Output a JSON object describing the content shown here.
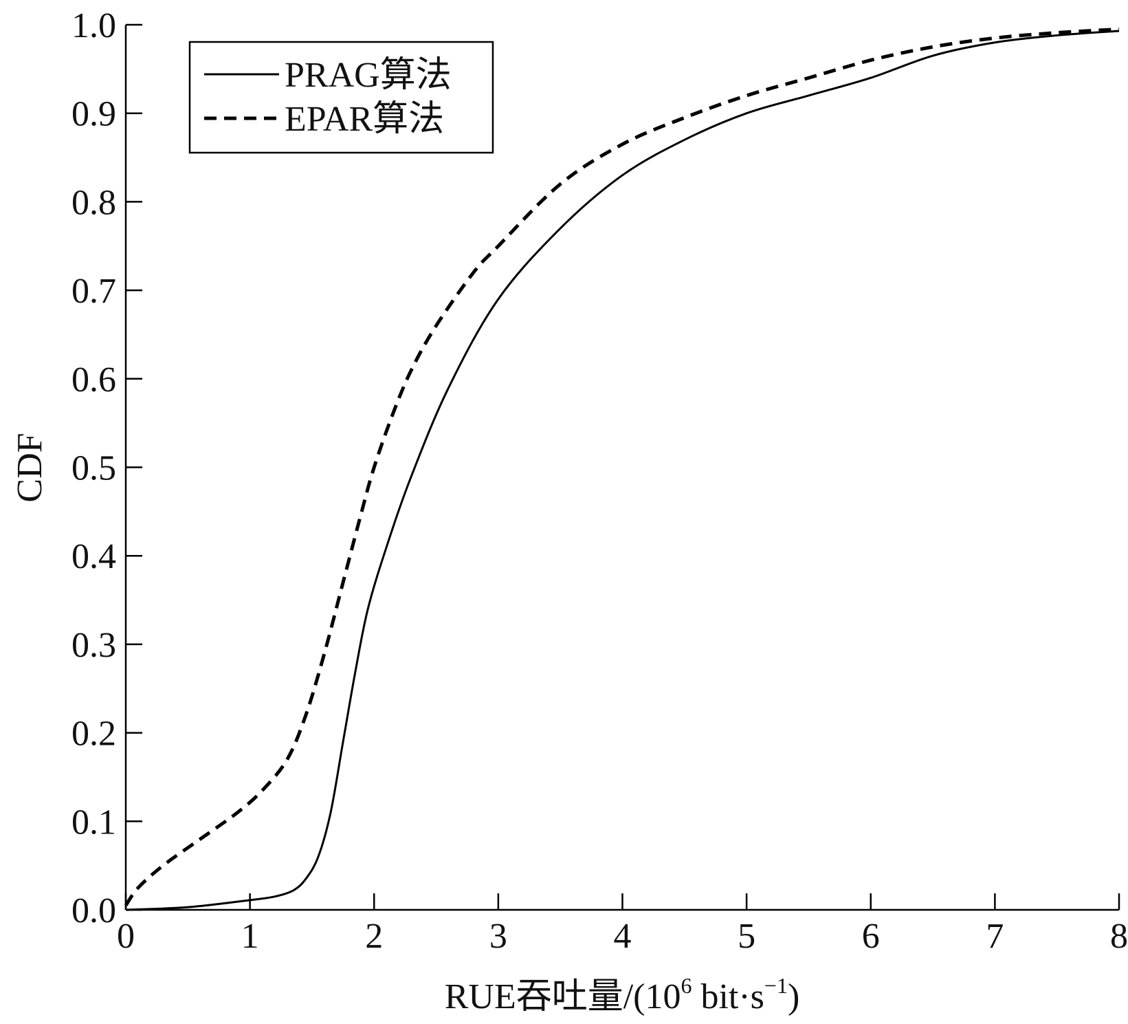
{
  "chart_data": {
    "type": "line",
    "title": "",
    "xlabel": "RUE吞吐量/(10",
    "xlabel_sup": "6",
    "xlabel_tail": " bit·s",
    "xlabel_sup2": "−1",
    "xlabel_end": ")",
    "ylabel": "CDF",
    "xlim": [
      0,
      8
    ],
    "ylim": [
      0,
      1
    ],
    "x_ticks": [
      "0",
      "1",
      "2",
      "3",
      "4",
      "5",
      "6",
      "7",
      "8"
    ],
    "y_ticks": [
      "0.0",
      "0.1",
      "0.2",
      "0.3",
      "0.4",
      "0.5",
      "0.6",
      "0.7",
      "0.8",
      "0.9",
      "1.0"
    ],
    "grid": false,
    "legend_position": "top-left",
    "series": [
      {
        "name": "PRAG算法",
        "style": "solid",
        "color": "#000000",
        "x": [
          0,
          0.5,
          1.0,
          1.2,
          1.35,
          1.45,
          1.55,
          1.65,
          1.75,
          1.85,
          1.95,
          2.1,
          2.3,
          2.6,
          3.0,
          3.5,
          4.0,
          4.5,
          5.0,
          5.5,
          6.0,
          6.5,
          7.0,
          7.5,
          8.0
        ],
        "y": [
          0,
          0.003,
          0.011,
          0.015,
          0.022,
          0.035,
          0.06,
          0.11,
          0.19,
          0.27,
          0.34,
          0.41,
          0.49,
          0.59,
          0.69,
          0.77,
          0.83,
          0.87,
          0.9,
          0.92,
          0.94,
          0.965,
          0.98,
          0.988,
          0.993
        ]
      },
      {
        "name": "EPAR算法",
        "style": "dashed",
        "color": "#000000",
        "x": [
          0,
          0.1,
          0.3,
          0.6,
          0.9,
          1.1,
          1.3,
          1.45,
          1.6,
          1.75,
          1.9,
          2.0,
          2.15,
          2.3,
          2.5,
          2.8,
          3.0,
          3.5,
          4.0,
          4.5,
          5.0,
          5.5,
          6.0,
          6.5,
          7.0,
          7.5,
          8.0
        ],
        "y": [
          0.005,
          0.025,
          0.05,
          0.08,
          0.11,
          0.135,
          0.17,
          0.22,
          0.29,
          0.37,
          0.45,
          0.5,
          0.56,
          0.61,
          0.66,
          0.72,
          0.75,
          0.82,
          0.865,
          0.895,
          0.92,
          0.94,
          0.96,
          0.975,
          0.985,
          0.991,
          0.995
        ]
      }
    ]
  }
}
